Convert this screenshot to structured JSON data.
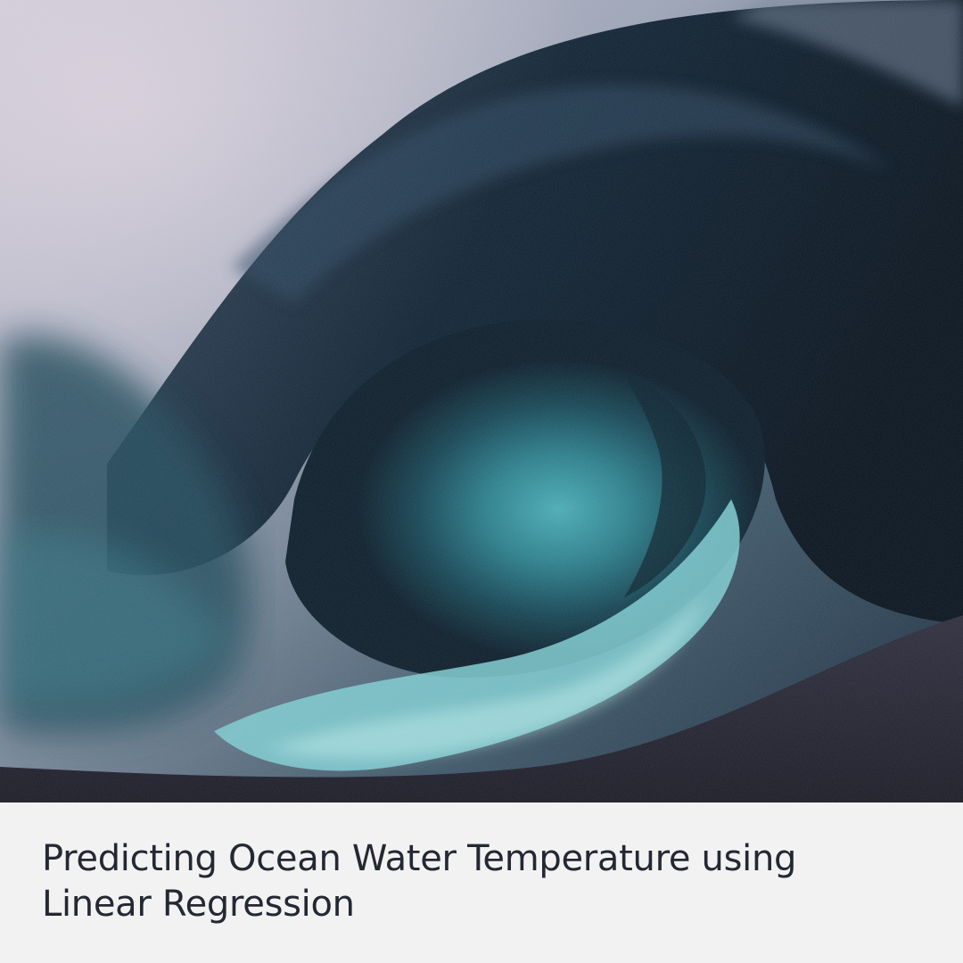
{
  "image": {
    "subject": "wave-photo",
    "palette": {
      "sky": "#b9b7c6",
      "deep": "#0d1c2a",
      "teal": "#2f8f9b",
      "foam": "#8fd2d6",
      "sand": "#2a2a38"
    }
  },
  "caption": {
    "title_line1": "Predicting Ocean Water Temperature using",
    "title_line2": "Linear Regression",
    "background": "#f2f2f3",
    "text_color": "#242833"
  }
}
